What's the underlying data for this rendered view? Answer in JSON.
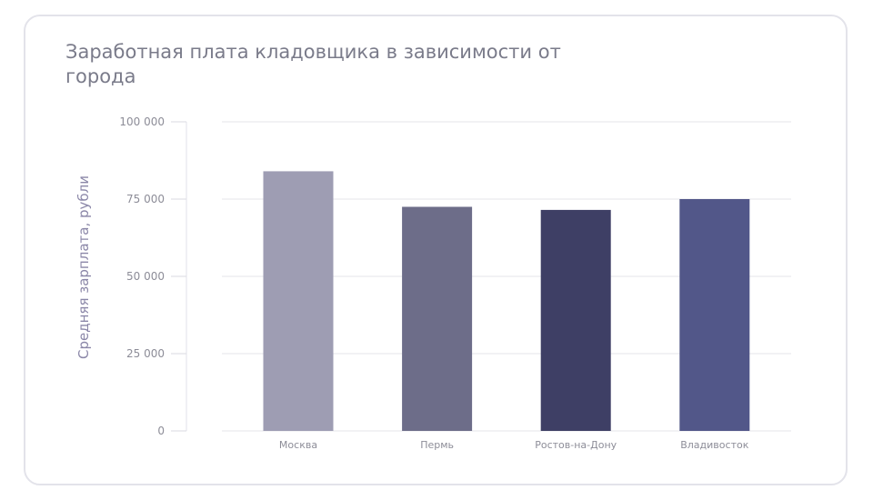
{
  "chart_data": {
    "type": "bar",
    "title": "Заработная плата кладовщика в зависимости от города",
    "xlabel": "",
    "ylabel": "Средняя зарплата, рубли",
    "categories": [
      "Москва",
      "Пермь",
      "Ростов-на-Дону",
      "Владивосток"
    ],
    "values": [
      84000,
      72500,
      71500,
      75000
    ],
    "colors": [
      "#9e9db3",
      "#6d6d89",
      "#3e3f65",
      "#525789"
    ],
    "ylim": [
      0,
      100000
    ],
    "yticks": [
      0,
      25000,
      50000,
      75000,
      100000
    ],
    "ytick_labels": [
      "0",
      "25 000",
      "50 000",
      "75 000",
      "100 000"
    ],
    "grid": true,
    "legend": "none"
  }
}
